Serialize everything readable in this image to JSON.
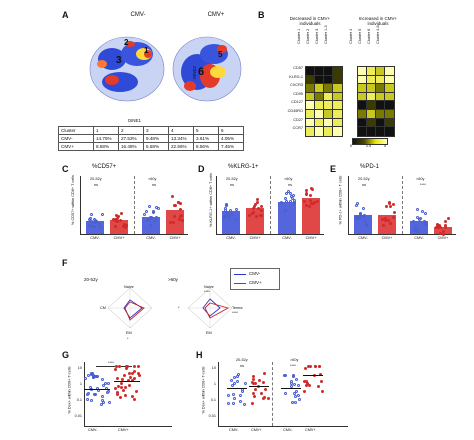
{
  "panels": {
    "A": {
      "letter": "A",
      "cmv_neg_title": "CMV-",
      "cmv_pos_title": "CMV+",
      "xaxis": "tSNE1",
      "yaxis": "tSNE2",
      "cluster_labels_left": [
        "2",
        "3",
        "1"
      ],
      "cluster_labels_right": [
        "6",
        "5"
      ],
      "table": {
        "header": [
          "Cluster",
          "1",
          "2",
          "3",
          "4",
          "5",
          "6"
        ],
        "rows": [
          [
            "CMV-",
            "14.75%",
            "27.53%",
            "9.48%",
            "13.34%",
            "3.61%",
            "4.05%"
          ],
          [
            "CMV+",
            "8.58%",
            "16.48%",
            "5.58%",
            "22.56%",
            "8.56%",
            "7.45%"
          ]
        ]
      }
    },
    "B": {
      "letter": "B",
      "left_header": "Decreased in CMV+ individuals",
      "right_header": "Increased in CMV+ individuals",
      "markers": [
        "CD57",
        "KLRG-1",
        "CXCR3",
        "CD95",
        "CD127",
        "CD45RO",
        "CD27",
        "CCR7"
      ],
      "left_clusters": [
        "Cluster 1",
        "Cluster 2",
        "Cluster 3",
        "Cluster 1-3"
      ],
      "right_clusters": [
        "Cluster 4",
        "Cluster 5",
        "Cluster 6",
        "Cluster 4-6"
      ],
      "scale": [
        "0",
        "2.5",
        "5"
      ]
    },
    "C": {
      "letter": "C",
      "title": "%CD57+",
      "ylabel": "% CD57+ within CD8+ T cells",
      "groups": [
        "20-52y",
        ">60y"
      ],
      "sig": [
        "ns",
        "ns"
      ],
      "xlabels": [
        "CMV-",
        "CMV+",
        "CMV-",
        "CMV+"
      ]
    },
    "D": {
      "letter": "D",
      "title": "%KLRG-1+",
      "ylabel": "% KLRG-1+ within CD8+ T cells",
      "groups": [
        "20-52y",
        ">60y"
      ],
      "sig": [
        "ns",
        "ns"
      ],
      "xlabels": [
        "CMV-",
        "CMV+",
        "CMV-",
        "CMV+"
      ]
    },
    "E": {
      "letter": "E",
      "title": "%PD-1",
      "ylabel": "% PD-1+ within CD8+ T cells",
      "groups": [
        "20-52y",
        ">60y"
      ],
      "sig": [
        "ns",
        "****"
      ],
      "xlabels": [
        "CMV-",
        "CMV+",
        "CMV-",
        "CMV+"
      ]
    },
    "F": {
      "letter": "F",
      "groups": [
        "20-52y",
        ">60y"
      ],
      "axes": [
        "Naive",
        "Temra",
        "EM",
        "CM"
      ],
      "sig_left": "*",
      "sig_right": [
        "****",
        "****",
        "*"
      ],
      "legend": [
        {
          "name": "CMV-",
          "color": "#3333cc"
        },
        {
          "name": "CMV+",
          "color": "#cc2222"
        }
      ]
    },
    "G": {
      "letter": "G",
      "title": "",
      "ylabel": "% Dex+ within CD8+ T-cells",
      "sig": "****",
      "xlabels": [
        "CMV-",
        "CMV+"
      ],
      "yticks": [
        "10",
        "1",
        "0.1",
        "0.01"
      ]
    },
    "H": {
      "letter": "H",
      "groups": [
        "20-52y",
        ">60y"
      ],
      "sig": [
        "ns",
        "****"
      ],
      "ylabel": "% Dex+ within CD8+ T-cells",
      "xlabels": [
        "CMV-",
        "CMV+",
        "CMV-",
        "CMV+"
      ],
      "yticks": [
        "10",
        "1",
        "0.1",
        "0.01"
      ]
    }
  },
  "colors": {
    "blue": "#4a5fcf",
    "red": "#d12a2a",
    "bar_blue": "#5566dd",
    "bar_red": "#e04848"
  }
}
